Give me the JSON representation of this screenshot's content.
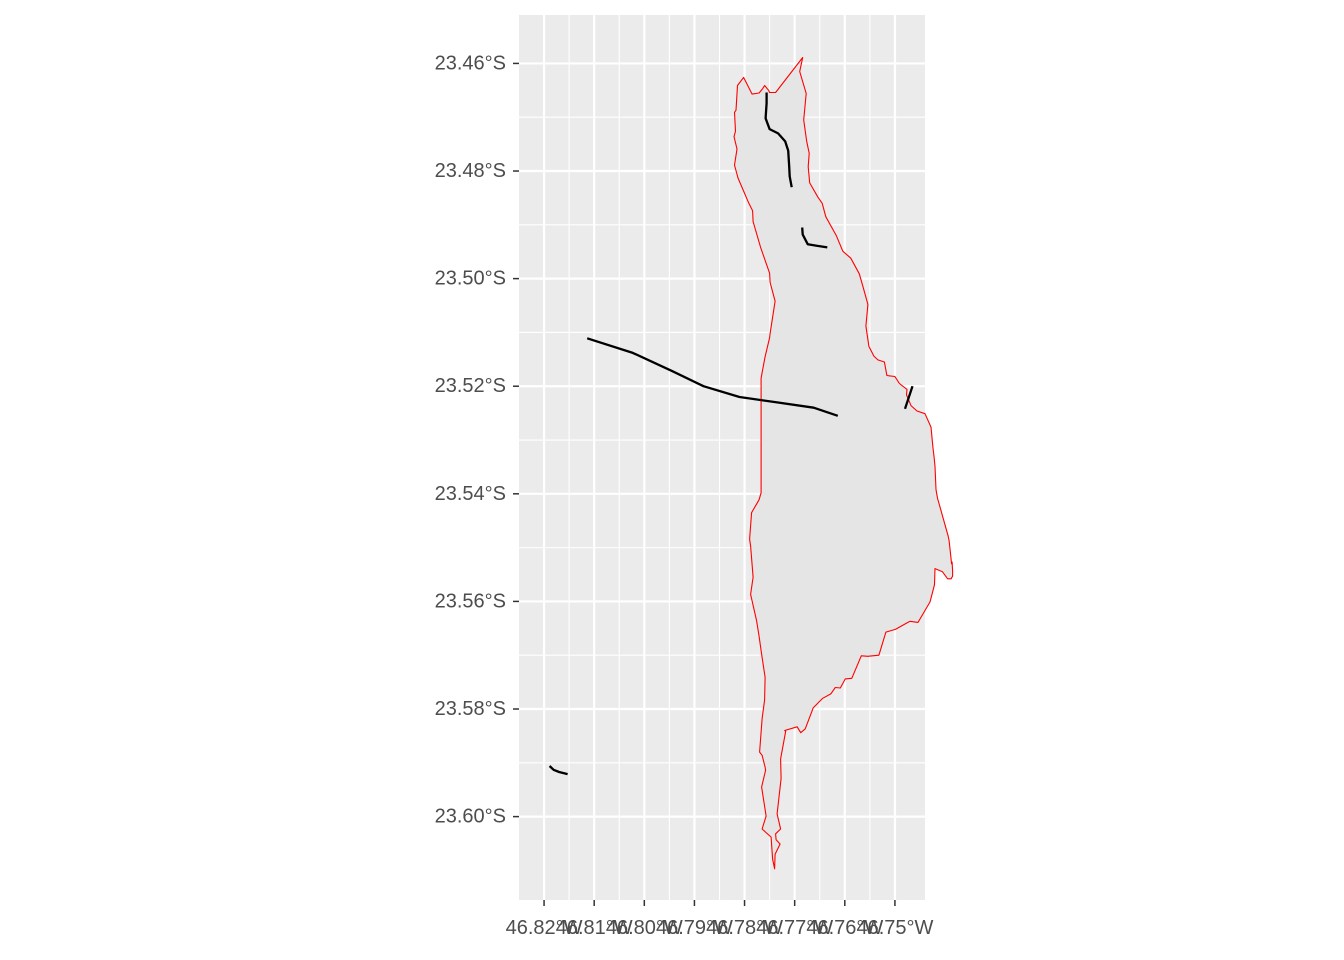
{
  "chart_data": {
    "type": "map",
    "title": "",
    "xlabel": "",
    "ylabel": "",
    "x_tick_labels": [
      "46.82°W",
      "46.81°W",
      "46.80°W",
      "46.79°W",
      "46.78°W",
      "46.77°W",
      "46.76°W",
      "46.75°W"
    ],
    "y_tick_labels": [
      "23.46°S",
      "23.48°S",
      "23.50°S",
      "23.52°S",
      "23.54°S",
      "23.56°S",
      "23.58°S",
      "23.60°S"
    ],
    "x_ticks": [
      -46.825,
      -46.815,
      -46.805,
      -46.795,
      -46.785,
      -46.775,
      -46.765,
      -46.755
    ],
    "y_ticks": [
      -23.46,
      -23.48,
      -23.5,
      -23.52,
      -23.54,
      -23.56,
      -23.58,
      -23.6
    ],
    "xlim": [
      -46.83,
      -46.749
    ],
    "ylim": [
      -23.6155,
      -23.451
    ],
    "grid": true,
    "colors": {
      "panel_background": "#ebebeb",
      "grid_line": "#ffffff",
      "polygon_fill": "#e5e5e5",
      "polygon_outline": "#ff0000",
      "lines": "#000000"
    },
    "polygon": [
      [
        -46.7734,
        -23.4589
      ],
      [
        -46.7788,
        -23.4654
      ],
      [
        -46.78,
        -23.4654
      ],
      [
        -46.7802,
        -23.465
      ],
      [
        -46.781,
        -23.4641
      ],
      [
        -46.7814,
        -23.4647
      ],
      [
        -46.7821,
        -23.4655
      ],
      [
        -46.7835,
        -23.4657
      ],
      [
        -46.7852,
        -23.4626
      ],
      [
        -46.7864,
        -23.4641
      ],
      [
        -46.7867,
        -23.4687
      ],
      [
        -46.787,
        -23.4691
      ],
      [
        -46.7868,
        -23.4726
      ],
      [
        -46.7871,
        -23.4736
      ],
      [
        -46.7865,
        -23.4759
      ],
      [
        -46.787,
        -23.4789
      ],
      [
        -46.7863,
        -23.4813
      ],
      [
        -46.7842,
        -23.4859
      ],
      [
        -46.7834,
        -23.4874
      ],
      [
        -46.7833,
        -23.4894
      ],
      [
        -46.7818,
        -23.4942
      ],
      [
        -46.78,
        -23.499
      ],
      [
        -46.7799,
        -23.5007
      ],
      [
        -46.7789,
        -23.5042
      ],
      [
        -46.7799,
        -23.5102
      ],
      [
        -46.78,
        -23.511
      ],
      [
        -46.7809,
        -23.5145
      ],
      [
        -46.7817,
        -23.5185
      ],
      [
        -46.7817,
        -23.5398
      ],
      [
        -46.7821,
        -23.5411
      ],
      [
        -46.7836,
        -23.5435
      ],
      [
        -46.784,
        -23.5484
      ],
      [
        -46.7838,
        -23.5497
      ],
      [
        -46.7833,
        -23.5555
      ],
      [
        -46.7838,
        -23.5587
      ],
      [
        -46.7826,
        -23.5636
      ],
      [
        -46.7821,
        -23.5665
      ],
      [
        -46.7816,
        -23.5698
      ],
      [
        -46.7809,
        -23.5741
      ],
      [
        -46.781,
        -23.5783
      ],
      [
        -46.7815,
        -23.5818
      ],
      [
        -46.782,
        -23.588
      ],
      [
        -46.7815,
        -23.5886
      ],
      [
        -46.7809,
        -23.5908
      ],
      [
        -46.7808,
        -23.5914
      ],
      [
        -46.7816,
        -23.5945
      ],
      [
        -46.7807,
        -23.5999
      ],
      [
        -46.7815,
        -23.6023
      ],
      [
        -46.7797,
        -23.6038
      ],
      [
        -46.7794,
        -23.6079
      ],
      [
        -46.779,
        -23.6097
      ],
      [
        -46.7789,
        -23.607
      ],
      [
        -46.7779,
        -23.6051
      ],
      [
        -46.7787,
        -23.6043
      ],
      [
        -46.7788,
        -23.6032
      ],
      [
        -46.7778,
        -23.6023
      ],
      [
        -46.7785,
        -23.5995
      ],
      [
        -46.7777,
        -23.5929
      ],
      [
        -46.7778,
        -23.5893
      ],
      [
        -46.7768,
        -23.5841
      ],
      [
        -46.777,
        -23.584
      ],
      [
        -46.7745,
        -23.5833
      ],
      [
        -46.7738,
        -23.5844
      ],
      [
        -46.7729,
        -23.5837
      ],
      [
        -46.7713,
        -23.5798
      ],
      [
        -46.7694,
        -23.578
      ],
      [
        -46.7678,
        -23.5772
      ],
      [
        -46.7669,
        -23.576
      ],
      [
        -46.7659,
        -23.5761
      ],
      [
        -46.7649,
        -23.5744
      ],
      [
        -46.7636,
        -23.5743
      ],
      [
        -46.7617,
        -23.5701
      ],
      [
        -46.7604,
        -23.5702
      ],
      [
        -46.7582,
        -23.57
      ],
      [
        -46.7568,
        -23.5657
      ],
      [
        -46.7549,
        -23.5652
      ],
      [
        -46.7526,
        -23.564
      ],
      [
        -46.752,
        -23.5637
      ],
      [
        -46.7504,
        -23.5639
      ],
      [
        -46.748,
        -23.5601
      ],
      [
        -46.7471,
        -23.5569
      ],
      [
        -46.747,
        -23.5539
      ],
      [
        -46.7455,
        -23.5545
      ],
      [
        -46.7445,
        -23.5558
      ],
      [
        -46.7438,
        -23.5558
      ],
      [
        -46.7435,
        -23.5553
      ],
      [
        -46.7435,
        -23.5543
      ],
      [
        -46.7436,
        -23.5527
      ],
      [
        -46.7437,
        -23.553
      ],
      [
        -46.7442,
        -23.5487
      ],
      [
        -46.7444,
        -23.5478
      ],
      [
        -46.7465,
        -23.5408
      ],
      [
        -46.7468,
        -23.5392
      ],
      [
        -46.7469,
        -23.537
      ],
      [
        -46.747,
        -23.5349
      ],
      [
        -46.7472,
        -23.533
      ],
      [
        -46.7474,
        -23.5315
      ],
      [
        -46.7478,
        -23.5276
      ],
      [
        -46.749,
        -23.5251
      ],
      [
        -46.7506,
        -23.5246
      ],
      [
        -46.7518,
        -23.5236
      ],
      [
        -46.7527,
        -23.5216
      ],
      [
        -46.7526,
        -23.5206
      ],
      [
        -46.7541,
        -23.5195
      ],
      [
        -46.755,
        -23.5182
      ],
      [
        -46.7566,
        -23.518
      ],
      [
        -46.7571,
        -23.5155
      ],
      [
        -46.7584,
        -23.5151
      ],
      [
        -46.7592,
        -23.5144
      ],
      [
        -46.7602,
        -23.5126
      ],
      [
        -46.7608,
        -23.5088
      ],
      [
        -46.7604,
        -23.5048
      ],
      [
        -46.7613,
        -23.5017
      ],
      [
        -46.7621,
        -23.4991
      ],
      [
        -46.7638,
        -23.4962
      ],
      [
        -46.7654,
        -23.4949
      ],
      [
        -46.7667,
        -23.492
      ],
      [
        -46.7688,
        -23.4885
      ],
      [
        -46.7695,
        -23.486
      ],
      [
        -46.7704,
        -23.4848
      ],
      [
        -46.772,
        -23.4822
      ],
      [
        -46.7723,
        -23.4792
      ],
      [
        -46.7721,
        -23.4767
      ],
      [
        -46.7726,
        -23.4745
      ],
      [
        -46.7732,
        -23.4705
      ],
      [
        -46.7727,
        -23.4656
      ],
      [
        -46.774,
        -23.4615
      ],
      [
        -46.7734,
        -23.4589
      ]
    ],
    "lines": [
      [
        [
          -46.7806,
          -23.4654
        ],
        [
          -46.7806,
          -23.4674
        ],
        [
          -46.7808,
          -23.4702
        ],
        [
          -46.78,
          -23.4722
        ],
        [
          -46.7783,
          -23.473
        ],
        [
          -46.7769,
          -23.4745
        ],
        [
          -46.7763,
          -23.4762
        ],
        [
          -46.7761,
          -23.4792
        ],
        [
          -46.776,
          -23.481
        ],
        [
          -46.7756,
          -23.483
        ]
      ],
      [
        [
          -46.7735,
          -23.4905
        ],
        [
          -46.7734,
          -23.4918
        ],
        [
          -46.7724,
          -23.4936
        ],
        [
          -46.7706,
          -23.4939
        ],
        [
          -46.7685,
          -23.4942
        ]
      ],
      [
        [
          -46.8164,
          -23.5111
        ],
        [
          -46.8073,
          -23.5138
        ],
        [
          -46.7994,
          -23.5172
        ],
        [
          -46.7932,
          -23.52
        ],
        [
          -46.786,
          -23.522
        ],
        [
          -46.7785,
          -23.523
        ],
        [
          -46.7712,
          -23.524
        ],
        [
          -46.7664,
          -23.5255
        ]
      ],
      [
        [
          -46.753,
          -23.5242
        ],
        [
          -46.7515,
          -23.52
        ]
      ],
      [
        [
          -46.8239,
          -23.5906
        ],
        [
          -46.8231,
          -23.5913
        ],
        [
          -46.822,
          -23.5917
        ],
        [
          -46.8203,
          -23.5921
        ]
      ]
    ]
  }
}
